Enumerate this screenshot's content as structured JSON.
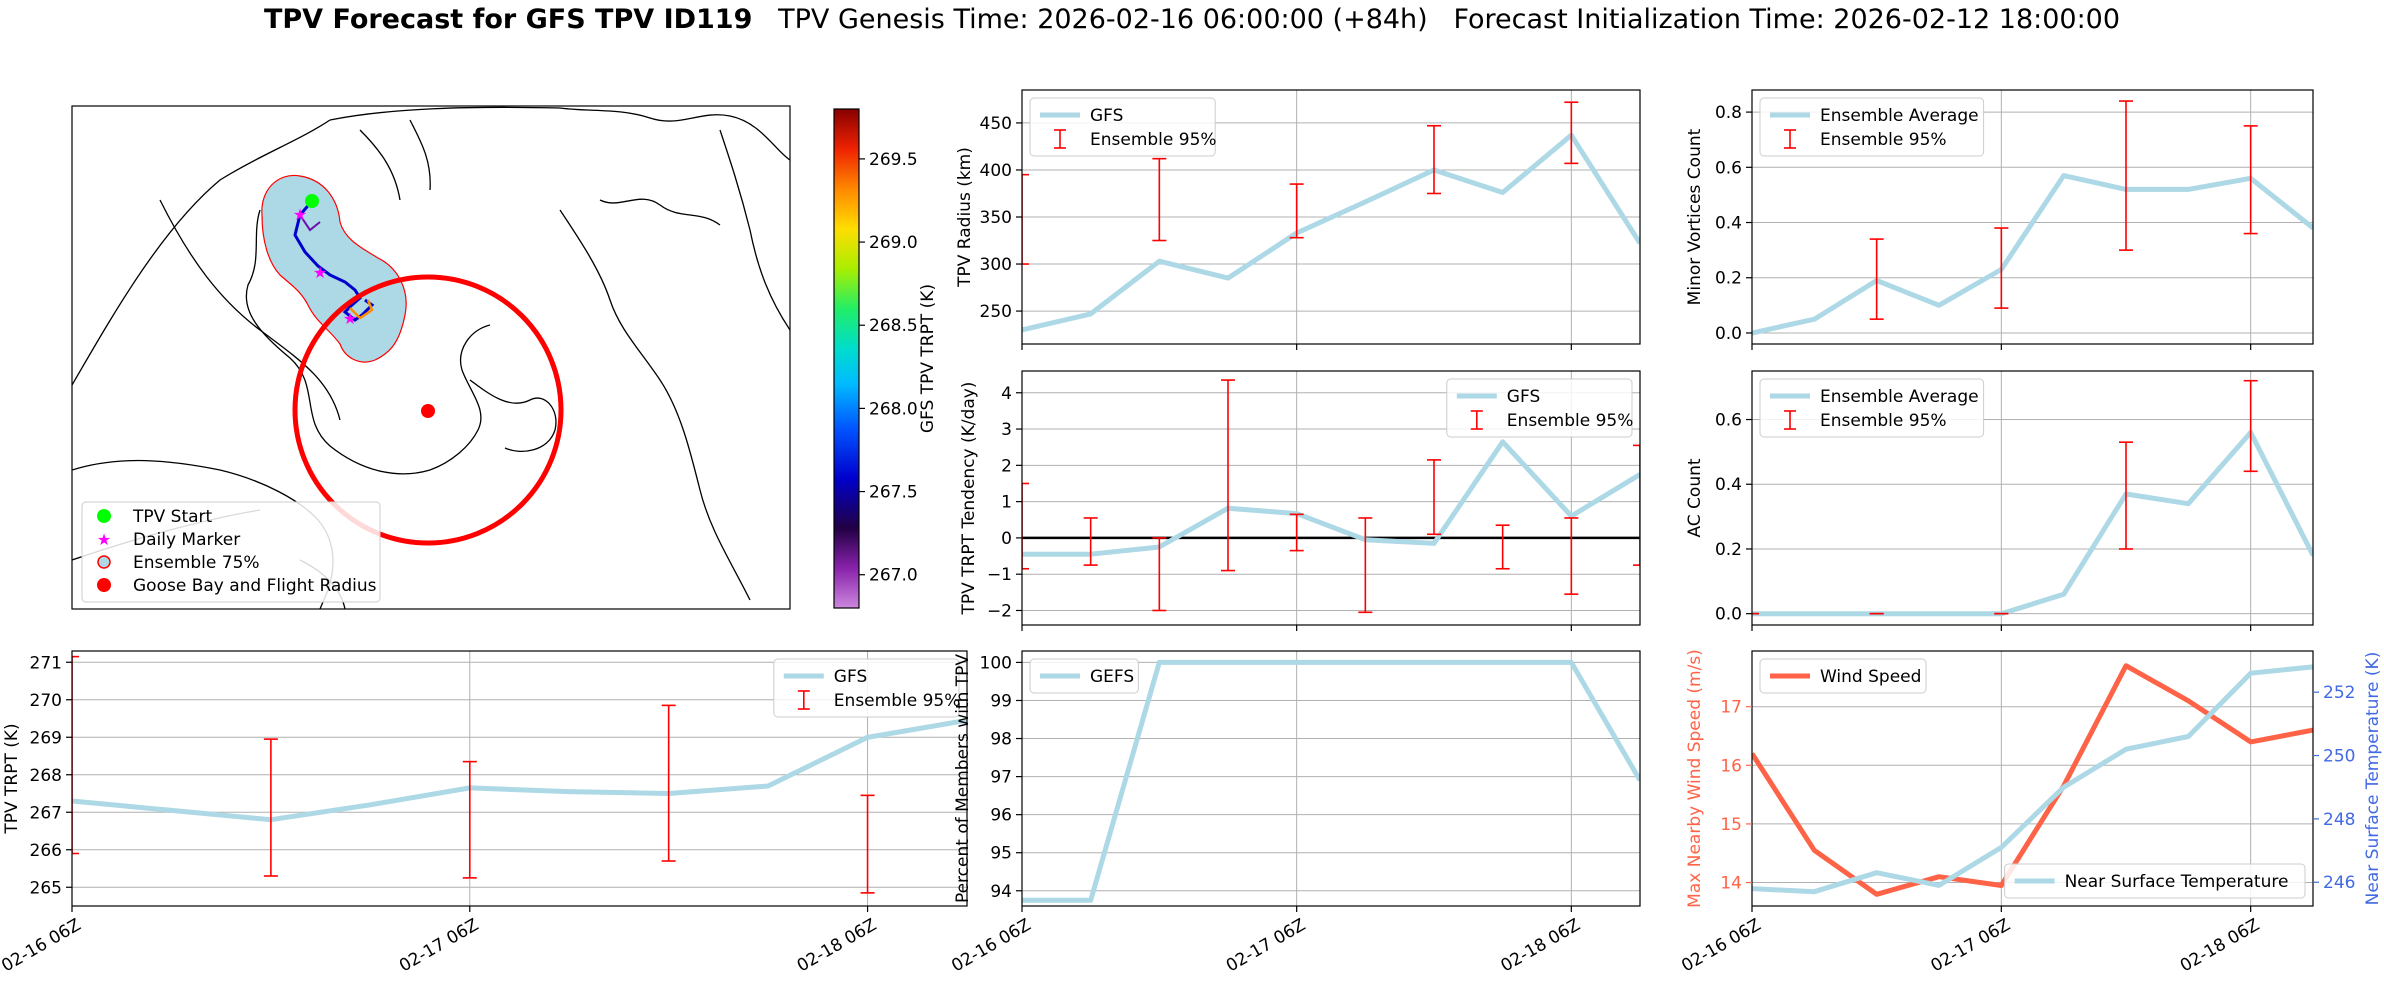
{
  "title": {
    "bold": "TPV Forecast for GFS TPV ID119",
    "genesis": "TPV Genesis Time: 2026-02-16 06:00:00 (+84h)",
    "init": "Forecast Initialization Time: 2026-02-12 18:00:00"
  },
  "map": {
    "colorbar_label": "GFS TPV TRPT (K)",
    "colorbar_ticks": [
      "267.0",
      "267.5",
      "268.0",
      "268.5",
      "269.0",
      "269.5"
    ],
    "colorbar_range": [
      266.8,
      269.8
    ],
    "legend": [
      "TPV Start",
      "Daily Marker",
      "Ensemble 75%",
      "Goose Bay and Flight Radius"
    ],
    "colors": {
      "start": "#00ff00",
      "marker": "#ff00ff",
      "ensemble_fill": "#add8e6",
      "ensemble_edge": "#ff0000",
      "goose": "#ff0000",
      "track": "#0000cc"
    }
  },
  "chart_data": [
    {
      "id": "radius",
      "type": "line",
      "ylabel": "TPV Radius (km)",
      "ylim": [
        215,
        485
      ],
      "yticks": [
        250,
        300,
        350,
        400,
        450
      ],
      "series": [
        {
          "name": "GFS",
          "values": [
            230,
            247,
            303,
            285,
            333,
            366,
            400,
            376,
            437,
            322
          ]
        },
        {
          "name": "Ensemble 95%",
          "type": "errorbar",
          "bars": [
            [
              0,
              300,
              395
            ],
            [
              2,
              325,
              412
            ],
            [
              4,
              328,
              385
            ],
            [
              6,
              375,
              447
            ],
            [
              8,
              407,
              472
            ]
          ]
        }
      ],
      "legend": "upper left"
    },
    {
      "id": "minor",
      "type": "line",
      "ylabel": "Minor Vortices Count",
      "ylim": [
        -0.04,
        0.88
      ],
      "yticks": [
        0.0,
        0.2,
        0.4,
        0.6,
        0.8
      ],
      "series": [
        {
          "name": "Ensemble Average",
          "values": [
            0.0,
            0.05,
            0.19,
            0.1,
            0.23,
            0.57,
            0.52,
            0.52,
            0.56,
            0.38
          ]
        },
        {
          "name": "Ensemble 95%",
          "type": "errorbar",
          "bars": [
            [
              2,
              0.05,
              0.34
            ],
            [
              4,
              0.09,
              0.38
            ],
            [
              6,
              0.3,
              0.84
            ],
            [
              8,
              0.36,
              0.75
            ]
          ]
        }
      ],
      "legend": "upper left"
    },
    {
      "id": "tendency",
      "type": "line",
      "ylabel": "TPV TRPT Tendency (K/day)",
      "ylim": [
        -2.4,
        4.6
      ],
      "yticks": [
        -2,
        -1,
        0,
        1,
        2,
        3,
        4
      ],
      "series": [
        {
          "name": "GFS",
          "values": [
            -0.45,
            -0.45,
            -0.25,
            0.82,
            0.67,
            -0.05,
            -0.15,
            2.65,
            0.6,
            1.75
          ]
        },
        {
          "name": "Ensemble 95%",
          "type": "errorbar",
          "bars": [
            [
              0,
              -0.85,
              1.5
            ],
            [
              1,
              -0.75,
              0.55
            ],
            [
              2,
              -2.0,
              0.0
            ],
            [
              3,
              -0.9,
              4.35
            ],
            [
              4,
              -0.35,
              0.65
            ],
            [
              5,
              -2.05,
              0.55
            ],
            [
              6,
              0.1,
              2.15
            ],
            [
              7,
              -0.85,
              0.35
            ],
            [
              8,
              -1.55,
              0.55
            ],
            [
              9,
              -0.75,
              2.55
            ]
          ]
        }
      ],
      "zero_line": true,
      "legend": "upper right"
    },
    {
      "id": "ac",
      "type": "line",
      "ylabel": "AC Count",
      "ylim": [
        -0.035,
        0.75
      ],
      "yticks": [
        0.0,
        0.2,
        0.4,
        0.6
      ],
      "series": [
        {
          "name": "Ensemble Average",
          "values": [
            0.0,
            0.0,
            0.0,
            0.0,
            0.0,
            0.06,
            0.37,
            0.34,
            0.56,
            0.18
          ]
        },
        {
          "name": "Ensemble 95%",
          "type": "errorbar",
          "bars": [
            [
              0,
              0.0,
              0.0
            ],
            [
              2,
              0.0,
              0.0
            ],
            [
              4,
              0.0,
              0.0
            ],
            [
              6,
              0.2,
              0.53
            ],
            [
              8,
              0.44,
              0.72
            ]
          ]
        }
      ],
      "legend": "upper left"
    },
    {
      "id": "trpt",
      "type": "line",
      "ylabel": "TPV TRPT (K)",
      "ylim": [
        264.5,
        271.3
      ],
      "yticks": [
        265,
        266,
        267,
        268,
        269,
        270,
        271
      ],
      "series": [
        {
          "name": "GFS",
          "values": [
            267.3,
            267.05,
            266.8,
            267.2,
            267.65,
            267.55,
            267.5,
            267.7,
            269.0,
            269.45
          ]
        },
        {
          "name": "Ensemble 95%",
          "type": "errorbar",
          "bars": [
            [
              0,
              265.9,
              271.15
            ],
            [
              2,
              265.3,
              268.95
            ],
            [
              4,
              265.25,
              268.35
            ],
            [
              6,
              265.7,
              269.85
            ],
            [
              8,
              264.85,
              267.45
            ]
          ]
        }
      ],
      "legend": "upper right"
    },
    {
      "id": "percent",
      "type": "line",
      "ylabel": "Percent of Members with TPV",
      "ylim": [
        93.6,
        100.3
      ],
      "yticks": [
        94,
        95,
        96,
        97,
        98,
        99,
        100
      ],
      "series": [
        {
          "name": "GEFS",
          "values": [
            93.75,
            93.75,
            100,
            100,
            100,
            100,
            100,
            100,
            100,
            96.9
          ]
        }
      ],
      "legend": "upper left"
    },
    {
      "id": "wind",
      "type": "line",
      "ylabel": "Max Nearby Wind Speed (m/s)",
      "ylabel2": "Near Surface Temperature (K)",
      "ylim": [
        13.6,
        17.95
      ],
      "yticks": [
        14,
        15,
        16,
        17
      ],
      "ylim2": [
        245.25,
        253.3
      ],
      "yticks2": [
        246,
        248,
        250,
        252
      ],
      "series": [
        {
          "name": "Wind Speed",
          "axis": "left",
          "values": [
            16.2,
            14.55,
            13.8,
            14.1,
            13.95,
            15.65,
            17.7,
            17.1,
            16.4,
            16.6
          ]
        },
        {
          "name": "Near Surface Temperature",
          "axis": "right",
          "values": [
            245.8,
            245.7,
            246.3,
            245.9,
            247.1,
            249.0,
            250.2,
            250.6,
            252.6,
            252.8
          ]
        }
      ],
      "colors": {
        "wind": "#ff6347",
        "temp": "#add8e6",
        "left_axis": "#ff6347",
        "right_axis": "#4169e1"
      },
      "legend": [
        "upper left",
        "lower right"
      ]
    }
  ],
  "xaxis": {
    "ticks": [
      "02-16 06Z",
      "02-17 06Z",
      "02-18 06Z"
    ],
    "tick_indices": [
      0,
      4,
      8
    ],
    "n": 10
  }
}
